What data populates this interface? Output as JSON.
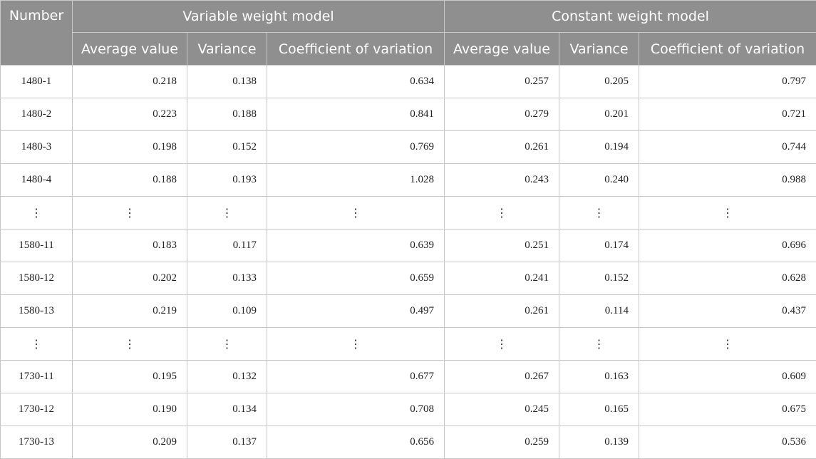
{
  "table": {
    "header_number": "Number",
    "group_variable": "Variable weight model",
    "group_constant": "Constant weight model",
    "sub_headers": [
      "Average value",
      "Variance",
      "Coefficient of variation",
      "Average value",
      "Variance",
      "Coefficient of variation"
    ],
    "rows": [
      [
        "1480-1",
        "0.218",
        "0.138",
        "0.634",
        "0.257",
        "0.205",
        "0.797"
      ],
      [
        "1480-2",
        "0.223",
        "0.188",
        "0.841",
        "0.279",
        "0.201",
        "0.721"
      ],
      [
        "1480-3",
        "0.198",
        "0.152",
        "0.769",
        "0.261",
        "0.194",
        "0.744"
      ],
      [
        "1480-4",
        "0.188",
        "0.193",
        "1.028",
        "0.243",
        "0.240",
        "0.988"
      ],
      [
        "⋮",
        "⋮",
        "⋮",
        "⋮",
        "⋮",
        "⋮",
        "⋮"
      ],
      [
        "1580-11",
        "0.183",
        "0.117",
        "0.639",
        "0.251",
        "0.174",
        "0.696"
      ],
      [
        "1580-12",
        "0.202",
        "0.133",
        "0.659",
        "0.241",
        "0.152",
        "0.628"
      ],
      [
        "1580-13",
        "0.219",
        "0.109",
        "0.497",
        "0.261",
        "0.114",
        "0.437"
      ],
      [
        "⋮",
        "⋮",
        "⋮",
        "⋮",
        "⋮",
        "⋮",
        "⋮"
      ],
      [
        "1730-11",
        "0.195",
        "0.132",
        "0.677",
        "0.267",
        "0.163",
        "0.609"
      ],
      [
        "1730-12",
        "0.190",
        "0.134",
        "0.708",
        "0.245",
        "0.165",
        "0.675"
      ],
      [
        "1730-13",
        "0.209",
        "0.137",
        "0.656",
        "0.259",
        "0.139",
        "0.536"
      ]
    ]
  }
}
